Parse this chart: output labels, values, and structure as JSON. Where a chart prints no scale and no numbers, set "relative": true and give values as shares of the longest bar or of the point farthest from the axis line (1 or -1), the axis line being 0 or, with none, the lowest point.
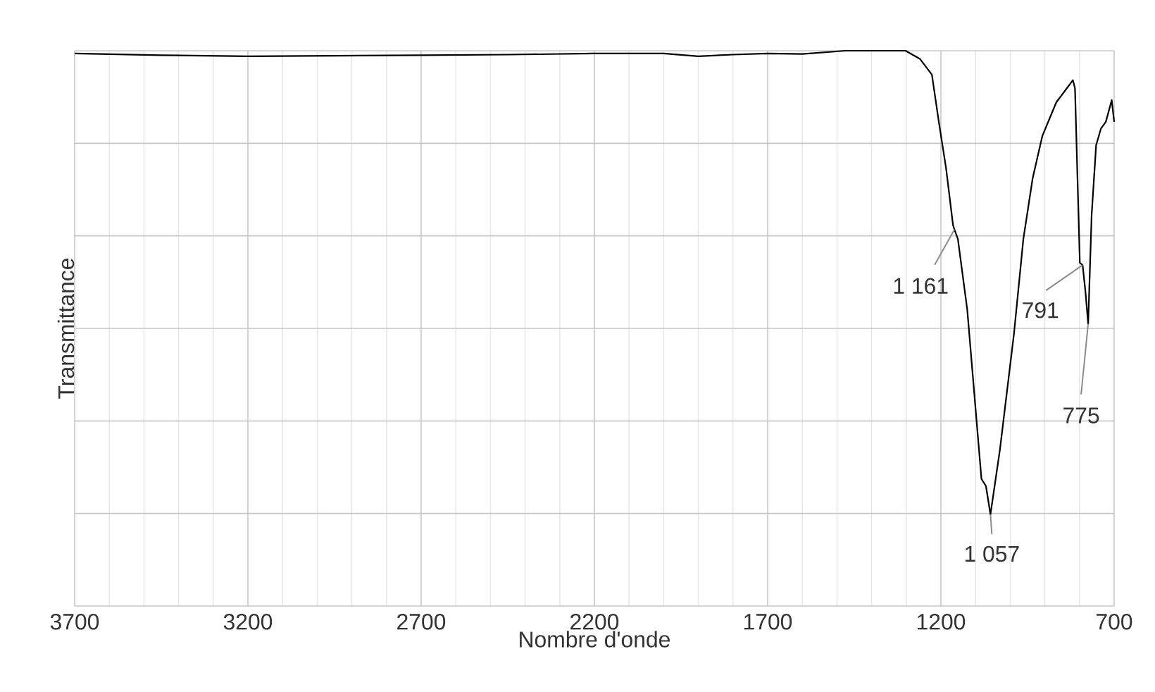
{
  "chart_data": {
    "type": "line",
    "xlabel": "Nombre d'onde",
    "ylabel": "Transmittance",
    "relative": true,
    "xlim": [
      3700,
      700
    ],
    "xticks": [
      3700,
      3200,
      2700,
      2200,
      1700,
      1200,
      700
    ],
    "grid": true,
    "series": [
      {
        "color": "#000000",
        "x": [
          3700,
          3450,
          3200,
          2950,
          2700,
          2450,
          2200,
          2000,
          1900,
          1800,
          1700,
          1600,
          1476,
          1302,
          1260,
          1226,
          1206,
          1185,
          1165,
          1161,
          1151,
          1124,
          1083,
          1070,
          1057,
          1030,
          989,
          962,
          935,
          907,
          867,
          819,
          813,
          799,
          791,
          783,
          775,
          765,
          752,
          738,
          724,
          707,
          700
        ],
        "values": [
          0.995,
          0.992,
          0.99,
          0.991,
          0.992,
          0.993,
          0.995,
          0.995,
          0.99,
          0.993,
          0.995,
          0.994,
          1.0,
          1.0,
          0.985,
          0.957,
          0.872,
          0.788,
          0.686,
          0.678,
          0.661,
          0.534,
          0.229,
          0.216,
          0.165,
          0.28,
          0.491,
          0.661,
          0.771,
          0.847,
          0.907,
          0.947,
          0.932,
          0.618,
          0.614,
          0.567,
          0.508,
          0.704,
          0.83,
          0.86,
          0.872,
          0.911,
          0.872
        ]
      }
    ],
    "annotations": [
      {
        "text": "1 161",
        "x": 1161,
        "y": 0.678
      },
      {
        "text": "1 057",
        "x": 1057,
        "y": 0.165
      },
      {
        "text": "791",
        "x": 791,
        "y": 0.614
      },
      {
        "text": "775",
        "x": 775,
        "y": 0.508
      }
    ]
  }
}
